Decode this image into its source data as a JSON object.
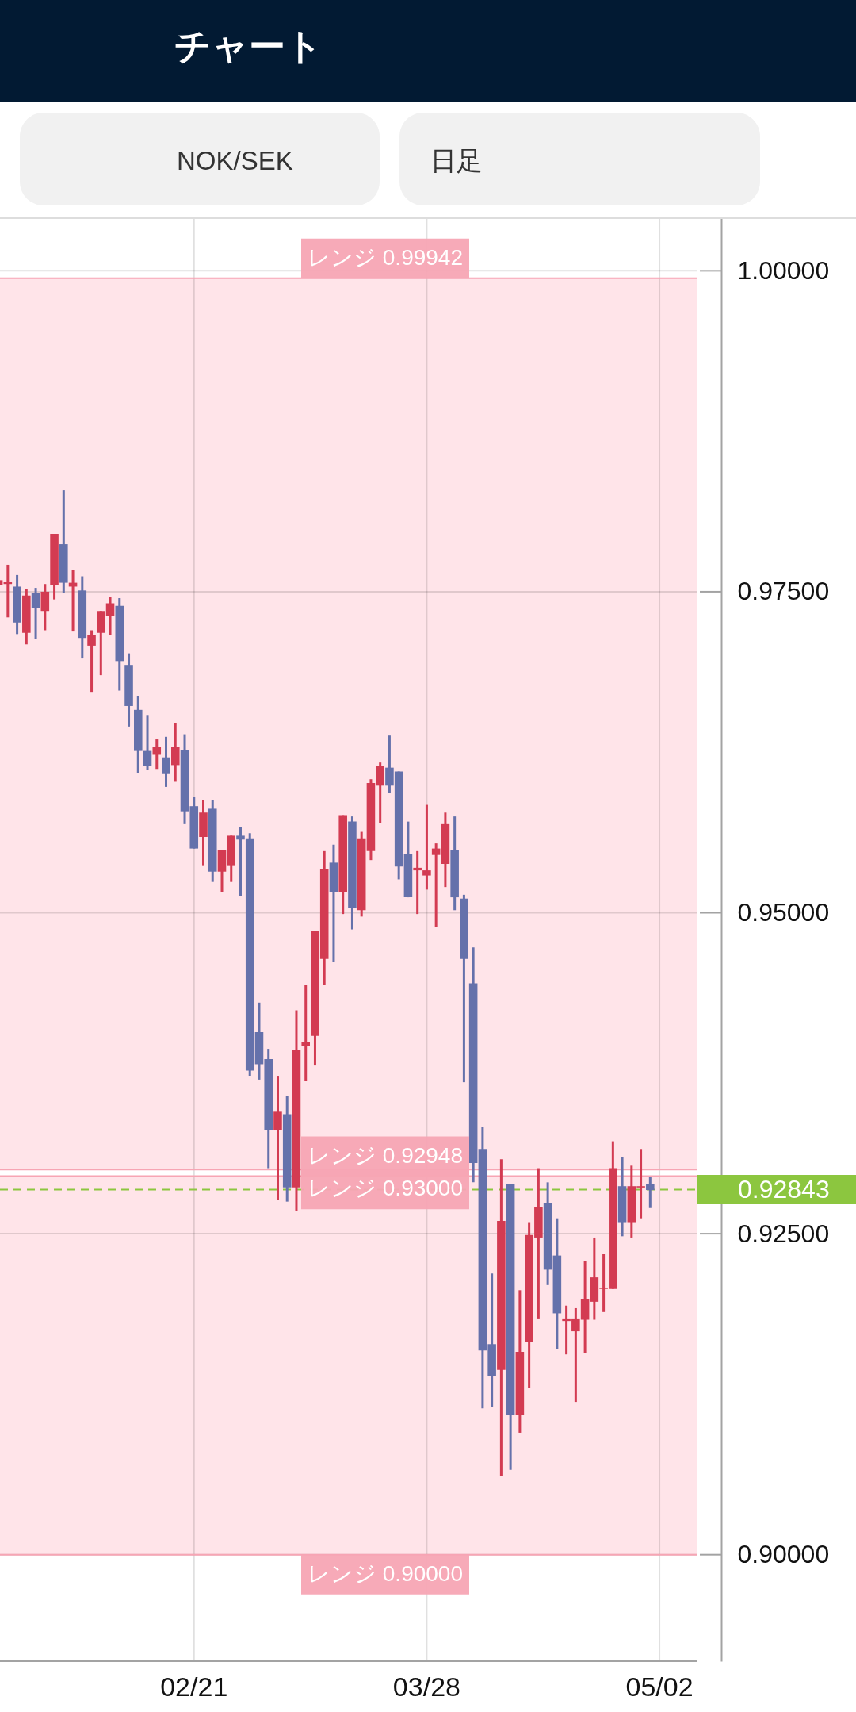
{
  "chart_data": {
    "type": "candlestick",
    "title": "チャート",
    "annotations": [
      "NOK/SEK",
      "日足"
    ],
    "categories": [
      null,
      null,
      null,
      null,
      null,
      null,
      null,
      null,
      null,
      null,
      null,
      null,
      null,
      null,
      null,
      null,
      null,
      null,
      null,
      null,
      null,
      "02/21",
      null,
      null,
      null,
      null,
      null,
      null,
      null,
      null,
      null,
      null,
      null,
      null,
      null,
      null,
      null,
      null,
      null,
      null,
      null,
      null,
      null,
      null,
      null,
      null,
      "03/28",
      null,
      null,
      null,
      null,
      null,
      null,
      null,
      null,
      null,
      null,
      null,
      null,
      null,
      null,
      null,
      null,
      null,
      null,
      null,
      null,
      null,
      null,
      null,
      null,
      "05/02"
    ],
    "ohlc": [
      [
        0.9755,
        0.9759,
        0.9755,
        0.9759
      ],
      [
        0.9756,
        0.9771,
        0.973,
        0.9758
      ],
      [
        0.9754,
        0.9763,
        0.9717,
        0.9726
      ],
      [
        0.9718,
        0.9752,
        0.9709,
        0.9747
      ],
      [
        0.9749,
        0.9753,
        0.9713,
        0.9737
      ],
      [
        0.9735,
        0.9756,
        0.972,
        0.975
      ],
      [
        0.9755,
        0.9795,
        0.9744,
        0.9795
      ],
      [
        0.9787,
        0.9829,
        0.9749,
        0.9757
      ],
      [
        0.9754,
        0.9767,
        0.9719,
        0.9757
      ],
      [
        0.9751,
        0.9762,
        0.9698,
        0.9714
      ],
      [
        0.9708,
        0.972,
        0.9672,
        0.9716
      ],
      [
        0.9718,
        0.9735,
        0.9685,
        0.9735
      ],
      [
        0.9731,
        0.9746,
        0.9716,
        0.9741
      ],
      [
        0.9739,
        0.9745,
        0.9673,
        0.9696
      ],
      [
        0.9693,
        0.9702,
        0.9645,
        0.9661
      ],
      [
        0.9658,
        0.9669,
        0.9609,
        0.9626
      ],
      [
        0.9626,
        0.9654,
        0.9611,
        0.9614
      ],
      [
        0.9623,
        0.9635,
        0.9612,
        0.9629
      ],
      [
        0.9621,
        0.9637,
        0.9598,
        0.9608
      ],
      [
        0.9615,
        0.9648,
        0.9602,
        0.9629
      ],
      [
        0.9627,
        0.9639,
        0.9569,
        0.9579
      ],
      [
        0.9583,
        0.959,
        0.955,
        0.955
      ],
      [
        0.9559,
        0.9588,
        0.9537,
        0.9578
      ],
      [
        0.9581,
        0.9588,
        0.9524,
        0.9532
      ],
      [
        0.9532,
        0.9549,
        0.9516,
        0.9549
      ],
      [
        0.9537,
        0.956,
        0.9524,
        0.956
      ],
      [
        0.956,
        0.9567,
        0.9513,
        0.9557
      ],
      [
        0.9558,
        0.9562,
        0.9373,
        0.9377
      ],
      [
        0.9407,
        0.943,
        0.937,
        0.9382
      ],
      [
        0.9386,
        0.9394,
        0.9301,
        0.9331
      ],
      [
        0.9331,
        0.9373,
        0.9276,
        0.9345
      ],
      [
        0.9343,
        0.9357,
        0.9275,
        0.9286
      ],
      [
        0.9286,
        0.9424,
        0.9268,
        0.9393
      ],
      [
        0.9396,
        0.9444,
        0.9369,
        0.9399
      ],
      [
        0.9404,
        0.9486,
        0.9381,
        0.9486
      ],
      [
        0.9464,
        0.9548,
        0.9444,
        0.9534
      ],
      [
        0.9539,
        0.9553,
        0.9462,
        0.9516
      ],
      [
        0.9516,
        0.9576,
        0.9499,
        0.9576
      ],
      [
        0.9571,
        0.9575,
        0.9487,
        0.9504
      ],
      [
        0.9502,
        0.9563,
        0.9497,
        0.9558
      ],
      [
        0.9548,
        0.9604,
        0.9541,
        0.9601
      ],
      [
        0.9599,
        0.9617,
        0.957,
        0.9614
      ],
      [
        0.9613,
        0.9638,
        0.9593,
        0.9599
      ],
      [
        0.961,
        0.961,
        0.9526,
        0.9536
      ],
      [
        0.9546,
        0.9571,
        0.9512,
        0.9512
      ],
      [
        0.9533,
        0.9548,
        0.9499,
        0.9535
      ],
      [
        0.9529,
        0.9584,
        0.9518,
        0.9533
      ],
      [
        0.9545,
        0.9554,
        0.9489,
        0.955
      ],
      [
        0.9538,
        0.9578,
        0.952,
        0.9569
      ],
      [
        0.9549,
        0.9575,
        0.9502,
        0.9512
      ],
      [
        0.9511,
        0.9514,
        0.9368,
        0.9464
      ],
      [
        0.9445,
        0.9473,
        0.929,
        0.9305
      ],
      [
        0.9316,
        0.9333,
        0.9114,
        0.9159
      ],
      [
        0.9164,
        0.9219,
        0.9115,
        0.9139
      ],
      [
        0.9144,
        0.9308,
        0.9061,
        0.926
      ],
      [
        0.9289,
        0.9289,
        0.9066,
        0.9109
      ],
      [
        0.9109,
        0.9206,
        0.9095,
        0.9158
      ],
      [
        0.9166,
        0.9259,
        0.913,
        0.9249
      ],
      [
        0.9247,
        0.9301,
        0.9184,
        0.9271
      ],
      [
        0.9274,
        0.929,
        0.921,
        0.9222
      ],
      [
        0.9233,
        0.9262,
        0.916,
        0.9188
      ],
      [
        0.9182,
        0.9194,
        0.9156,
        0.9184
      ],
      [
        0.9174,
        0.9192,
        0.9119,
        0.9184
      ],
      [
        0.9183,
        0.9229,
        0.9157,
        0.9199
      ],
      [
        0.9197,
        0.9247,
        0.9183,
        0.9216
      ],
      [
        0.9207,
        0.9234,
        0.9189,
        0.9208
      ],
      [
        0.9207,
        0.9322,
        0.9207,
        0.9301
      ],
      [
        0.9287,
        0.931,
        0.9248,
        0.9259
      ],
      [
        0.9259,
        0.9303,
        0.9247,
        0.9287
      ],
      [
        0.9286,
        0.9316,
        0.9262,
        0.9287
      ],
      [
        0.9289,
        0.9294,
        0.927,
        0.9284
      ],
      null
    ],
    "colors": [
      "#d33b52",
      "#d33b52",
      "#6571ab",
      "#d33b52",
      "#6571ab",
      "#d33b52",
      "#d33b52",
      "#6571ab",
      "#d33b52",
      "#6571ab",
      "#d33b52",
      "#d33b52",
      "#d33b52",
      "#6571ab",
      "#6571ab",
      "#6571ab",
      "#6571ab",
      "#d33b52",
      "#6571ab",
      "#d33b52",
      "#6571ab",
      "#6571ab",
      "#d33b52",
      "#6571ab",
      "#d33b52",
      "#d33b52",
      "#6571ab",
      "#6571ab",
      "#6571ab",
      "#6571ab",
      "#d33b52",
      "#6571ab",
      "#d33b52",
      "#d33b52",
      "#d33b52",
      "#d33b52",
      "#6571ab",
      "#d33b52",
      "#6571ab",
      "#d33b52",
      "#d33b52",
      "#d33b52",
      "#6571ab",
      "#6571ab",
      "#6571ab",
      "#d33b52",
      "#d33b52",
      "#d33b52",
      "#d33b52",
      "#6571ab",
      "#6571ab",
      "#6571ab",
      "#6571ab",
      "#6571ab",
      "#d33b52",
      "#6571ab",
      "#d33b52",
      "#d33b52",
      "#d33b52",
      "#6571ab",
      "#6571ab",
      "#d33b52",
      "#d33b52",
      "#d33b52",
      "#d33b52",
      "#d33b52",
      "#d33b52",
      "#6571ab",
      "#d33b52",
      "#d33b52",
      "#6571ab",
      null
    ],
    "ylim": [
      0.8917,
      1.0041
    ],
    "yticks": [
      {
        "value": 0.9,
        "label": "0.90000"
      },
      {
        "value": 0.925,
        "label": "0.92500"
      },
      {
        "value": 0.95,
        "label": "0.95000"
      },
      {
        "value": 0.975,
        "label": "0.97500"
      },
      {
        "value": 1.0,
        "label": "1.00000"
      }
    ],
    "grid": true,
    "bands": [
      {
        "axis": "y",
        "from": 0.93,
        "to": 0.99942,
        "color": "#ffe4e9"
      },
      {
        "axis": "y",
        "from": 0.9,
        "to": 0.92948,
        "color": "#ffe4e9"
      }
    ],
    "ref_lines": [
      {
        "axis": "y",
        "value": 0.99942,
        "label": "レンジ 0.99942",
        "color": "#f7a5b4"
      },
      {
        "axis": "y",
        "value": 0.92948,
        "label": "レンジ 0.92948",
        "color": "#f7a5b4"
      },
      {
        "axis": "y",
        "value": 0.93,
        "label": "レンジ 0.93000",
        "color": "#f7a5b4"
      },
      {
        "axis": "y",
        "value": 0.9,
        "label": "レンジ 0.90000",
        "color": "#f7a5b4"
      },
      {
        "axis": "y",
        "value": 0.92843,
        "label": "0.92843",
        "color": "#8cc63f",
        "line_style": "dashed"
      }
    ]
  }
}
